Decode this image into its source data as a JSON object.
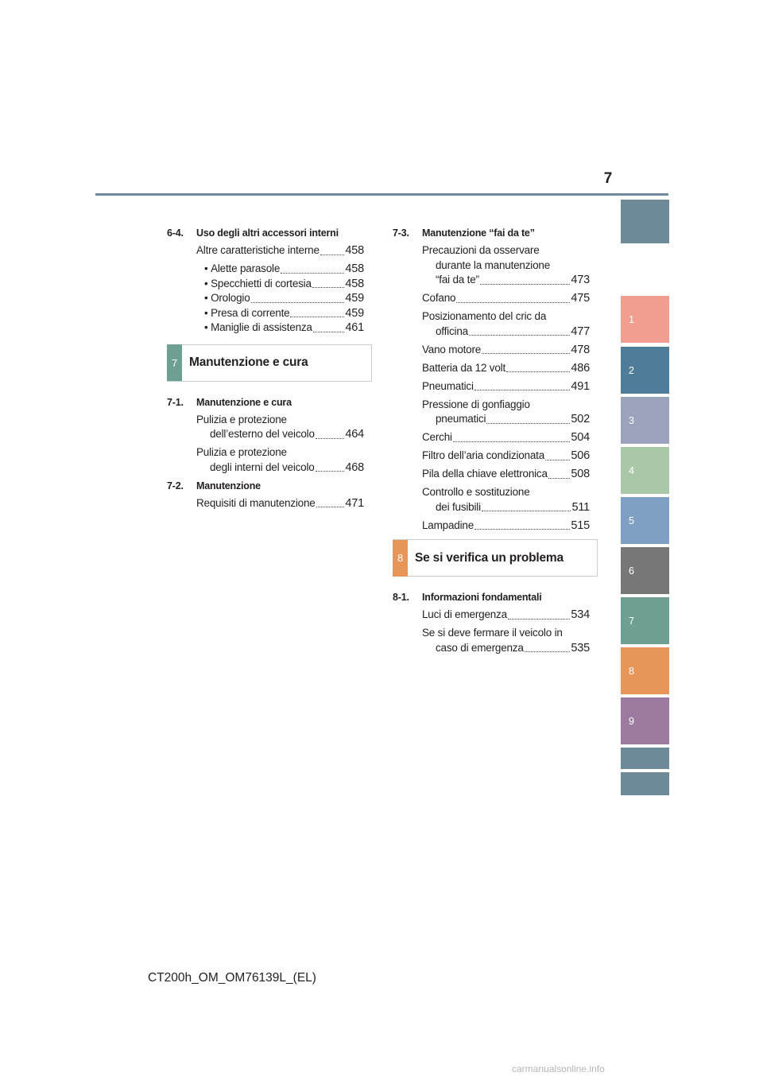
{
  "header": {
    "page_number": "7"
  },
  "left_column": {
    "section_64": {
      "number": "6-4.",
      "title": "Uso degli altri accessori interni",
      "entry": {
        "text": "Altre caratteristiche interne",
        "page": "458"
      },
      "bullets": [
        {
          "text": "Alette parasole",
          "page": "458"
        },
        {
          "text": "Specchietti di cortesia",
          "page": "458"
        },
        {
          "text": "Orologio",
          "page": "459"
        },
        {
          "text": "Presa di corrente",
          "page": "459"
        },
        {
          "text": "Maniglie di assistenza",
          "page": "461"
        }
      ]
    },
    "chapter7": {
      "number": "7",
      "title": "Manutenzione e cura",
      "color": "#6d9f93"
    },
    "section_71": {
      "number": "7-1.",
      "title": "Manutenzione e cura",
      "entries": [
        {
          "line1": "Pulizia e protezione",
          "line2": "dell’esterno del veicolo",
          "page": "464"
        },
        {
          "line1": "Pulizia e protezione",
          "line2": "degli interni del veicolo",
          "page": "468"
        }
      ]
    },
    "section_72": {
      "number": "7-2.",
      "title": "Manutenzione",
      "entry": {
        "text": "Requisiti di manutenzione",
        "page": "471"
      }
    }
  },
  "right_column": {
    "section_73": {
      "number": "7-3.",
      "title": "Manutenzione “fai da te”",
      "entry_precautions": {
        "line1": "Precauzioni da osservare",
        "line2": "durante la manutenzione",
        "line3": "“fai da te”",
        "page": "473"
      },
      "entry_cofano": {
        "text": "Cofano",
        "page": "475"
      },
      "entry_cric": {
        "line1": "Posizionamento del cric da",
        "line2": "officina",
        "page": "477"
      },
      "entry_vano": {
        "text": "Vano motore",
        "page": "478"
      },
      "entry_batteria": {
        "text": "Batteria da 12 volt",
        "page": "486"
      },
      "entry_pneumatici": {
        "text": "Pneumatici",
        "page": "491"
      },
      "entry_pressione": {
        "line1": "Pressione di gonfiaggio",
        "line2": "pneumatici",
        "page": "502"
      },
      "entry_cerchi": {
        "text": "Cerchi",
        "page": "504"
      },
      "entry_filtro": {
        "text": "Filtro dell’aria condizionata",
        "page": "506"
      },
      "entry_pila": {
        "text": "Pila della chiave elettronica",
        "page": "508"
      },
      "entry_fusibili": {
        "line1": "Controllo e sostituzione",
        "line2": "dei fusibili",
        "page": "511"
      },
      "entry_lampadine": {
        "text": "Lampadine",
        "page": "515"
      }
    },
    "chapter8": {
      "number": "8",
      "title": "Se si verifica un problema",
      "color": "#e8955a"
    },
    "section_81": {
      "number": "8-1.",
      "title": "Informazioni fondamentali",
      "entry_luci": {
        "text": "Luci di emergenza",
        "page": "534"
      },
      "entry_fermare": {
        "line1": "Se si deve fermare il veicolo in",
        "line2": "caso di emergenza",
        "page": "535"
      }
    }
  },
  "side_tabs": [
    {
      "label": "",
      "color": "#6d8a98"
    },
    {
      "label": "1",
      "color": "#f09e8f"
    },
    {
      "label": "2",
      "color": "#4f7d99"
    },
    {
      "label": "3",
      "color": "#9ca3bd"
    },
    {
      "label": "4",
      "color": "#a9c8a8"
    },
    {
      "label": "5",
      "color": "#7fa0c4"
    },
    {
      "label": "6",
      "color": "#777777"
    },
    {
      "label": "7",
      "color": "#6d9f93"
    },
    {
      "label": "8",
      "color": "#e8955a"
    },
    {
      "label": "9",
      "color": "#9d7ba0"
    },
    {
      "label": "",
      "color": "#6d8a98"
    },
    {
      "label": "",
      "color": "#6d8a98"
    }
  ],
  "footer": {
    "code": "CT200h_OM_OM76139L_(EL)",
    "watermark": "carmanualsonline.info"
  }
}
